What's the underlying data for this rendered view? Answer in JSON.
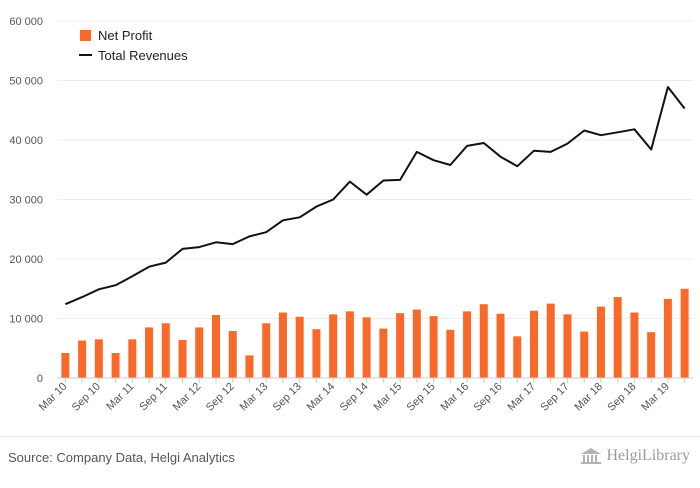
{
  "source": "Source: Company Data, Helgi Analytics",
  "logo_text": "HelgiLibrary",
  "colors": {
    "bar": "#f96a2a",
    "line": "#111111",
    "axis_text": "#555555",
    "grid": "#ececec"
  },
  "chart_data": {
    "type": "bar",
    "x": [
      "Mar 10",
      "Jun 10",
      "Sep 10",
      "Dec 10",
      "Mar 11",
      "Jun 11",
      "Sep 11",
      "Dec 11",
      "Mar 12",
      "Jun 12",
      "Sep 12",
      "Dec 12",
      "Mar 13",
      "Jun 13",
      "Sep 13",
      "Dec 13",
      "Mar 14",
      "Jun 14",
      "Sep 14",
      "Dec 14",
      "Mar 15",
      "Jun 15",
      "Sep 15",
      "Dec 15",
      "Mar 16",
      "Jun 16",
      "Sep 16",
      "Dec 16",
      "Mar 17",
      "Jun 17",
      "Sep 17",
      "Dec 17",
      "Mar 18",
      "Jun 18",
      "Sep 18",
      "Dec 18",
      "Mar 19",
      "Jun 19"
    ],
    "tick_labels": [
      "Mar 10",
      "Sep 10",
      "Mar 11",
      "Sep 11",
      "Mar 12",
      "Sep 12",
      "Mar 13",
      "Sep 13",
      "Mar 14",
      "Sep 14",
      "Mar 15",
      "Sep 15",
      "Mar 16",
      "Sep 16",
      "Mar 17",
      "Sep 17",
      "Mar 18",
      "Sep 18",
      "Mar 19"
    ],
    "series": [
      {
        "name": "Net Profit",
        "type": "bar",
        "values": [
          4200,
          6300,
          6500,
          4200,
          6500,
          8500,
          9200,
          6400,
          8500,
          10600,
          7900,
          3800,
          9200,
          11000,
          10300,
          8200,
          10700,
          11200,
          10200,
          8300,
          10900,
          11500,
          10400,
          8100,
          11200,
          12400,
          10800,
          7000,
          11300,
          12500,
          10700,
          7800,
          12000,
          13600,
          11000,
          7700,
          13300,
          15000
        ]
      },
      {
        "name": "Total Revenues",
        "type": "line",
        "values": [
          12400,
          13600,
          14900,
          15600,
          17100,
          18700,
          19400,
          21700,
          22000,
          22800,
          22500,
          23800,
          24500,
          26500,
          27000,
          28800,
          30000,
          33000,
          30800,
          33200,
          33300,
          38000,
          36600,
          35800,
          39000,
          39500,
          37200,
          35600,
          38200,
          38000,
          39400,
          41600,
          40800,
          41300,
          41800,
          38400,
          48900,
          45300
        ]
      }
    ],
    "yticks": [
      "0",
      "10 000",
      "20 000",
      "30 000",
      "40 000",
      "50 000",
      "60 000"
    ],
    "ylim": [
      0,
      60000
    ],
    "legend_position": "top-left",
    "grid": "horizontal"
  }
}
